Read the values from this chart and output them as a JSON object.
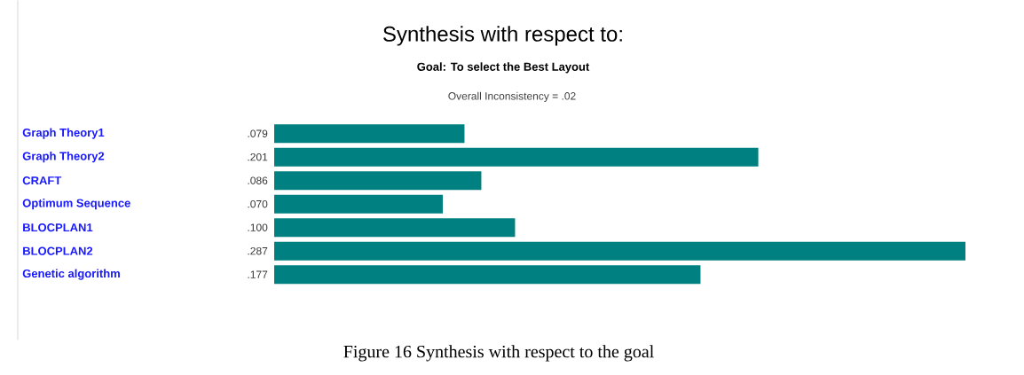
{
  "chart_data": {
    "type": "bar",
    "orientation": "horizontal",
    "title": "Synthesis with respect to:",
    "subtitle": "Goal: To select the Best Layout",
    "annotations": [
      "Overall Inconsistency = .02",
      "Figure 16 Synthesis with respect to the goal"
    ],
    "categories": [
      "Graph Theory1",
      "Graph Theory2",
      "CRAFT",
      "Optimum Sequence",
      "BLOCPLAN1",
      "BLOCPLAN2",
      "Genetic algorithm"
    ],
    "values": [
      0.079,
      0.201,
      0.086,
      0.07,
      0.1,
      0.287,
      0.177
    ],
    "value_labels": [
      ".079",
      ".201",
      ".086",
      ".070",
      ".100",
      ".287",
      ".177"
    ],
    "color": "#008080"
  }
}
